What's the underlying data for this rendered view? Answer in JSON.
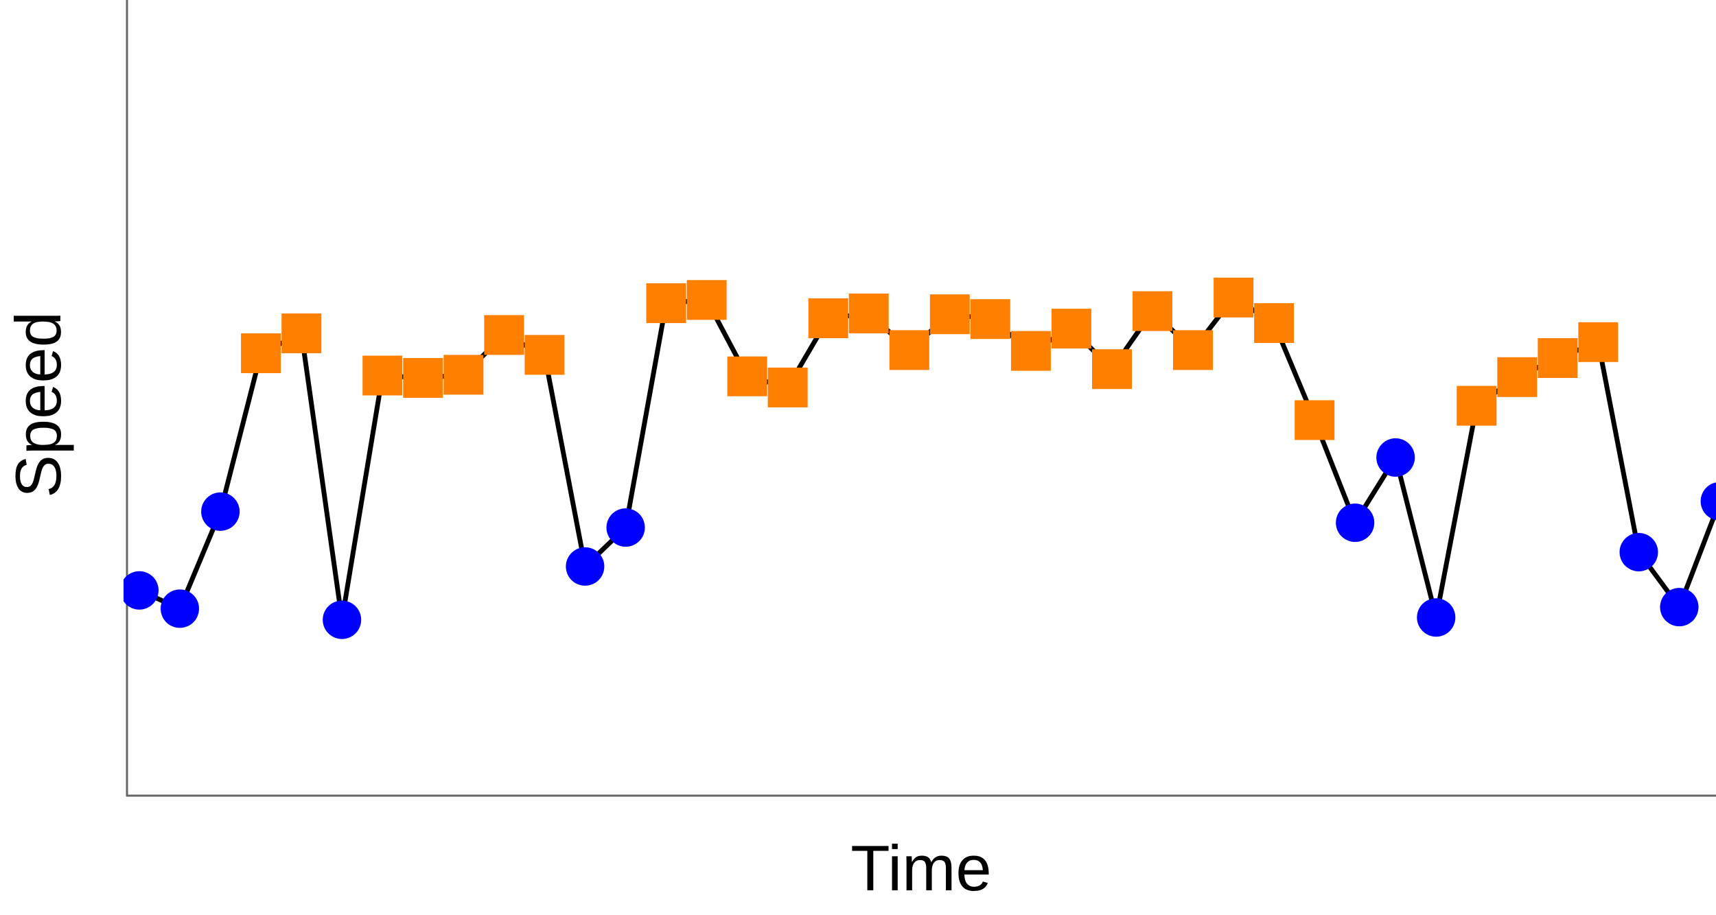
{
  "chart_data": {
    "type": "line",
    "title": "",
    "xlabel": "Time",
    "ylabel": "Speed",
    "grid": false,
    "legend": "none",
    "ylim": [
      0,
      1
    ],
    "line_color": "#000000",
    "axis_color": "#666666",
    "category_styles": {
      "low": {
        "marker": "circle",
        "color": "#0000FF"
      },
      "high": {
        "marker": "square",
        "color": "#FF7F00"
      }
    },
    "series": [
      {
        "x": [
          0,
          1,
          2,
          3,
          4,
          5,
          6,
          7,
          8,
          9,
          10,
          11,
          12,
          13,
          14,
          15,
          16,
          17,
          18,
          19,
          20,
          21,
          22,
          23,
          24,
          25,
          26,
          27,
          28,
          29,
          30,
          31,
          32,
          33,
          34,
          35,
          36,
          37,
          38,
          39
        ],
        "y": [
          0.258,
          0.235,
          0.357,
          0.556,
          0.581,
          0.221,
          0.528,
          0.525,
          0.529,
          0.579,
          0.554,
          0.288,
          0.337,
          0.619,
          0.623,
          0.527,
          0.513,
          0.6,
          0.606,
          0.56,
          0.605,
          0.599,
          0.559,
          0.587,
          0.536,
          0.609,
          0.56,
          0.626,
          0.594,
          0.472,
          0.343,
          0.425,
          0.224,
          0.49,
          0.526,
          0.55,
          0.57,
          0.306,
          0.237,
          0.37
        ],
        "category": [
          "low",
          "low",
          "low",
          "high",
          "high",
          "low",
          "high",
          "high",
          "high",
          "high",
          "high",
          "low",
          "low",
          "high",
          "high",
          "high",
          "high",
          "high",
          "high",
          "high",
          "high",
          "high",
          "high",
          "high",
          "high",
          "high",
          "high",
          "high",
          "high",
          "high",
          "low",
          "low",
          "low",
          "high",
          "high",
          "high",
          "high",
          "low",
          "low",
          "low"
        ]
      }
    ]
  }
}
